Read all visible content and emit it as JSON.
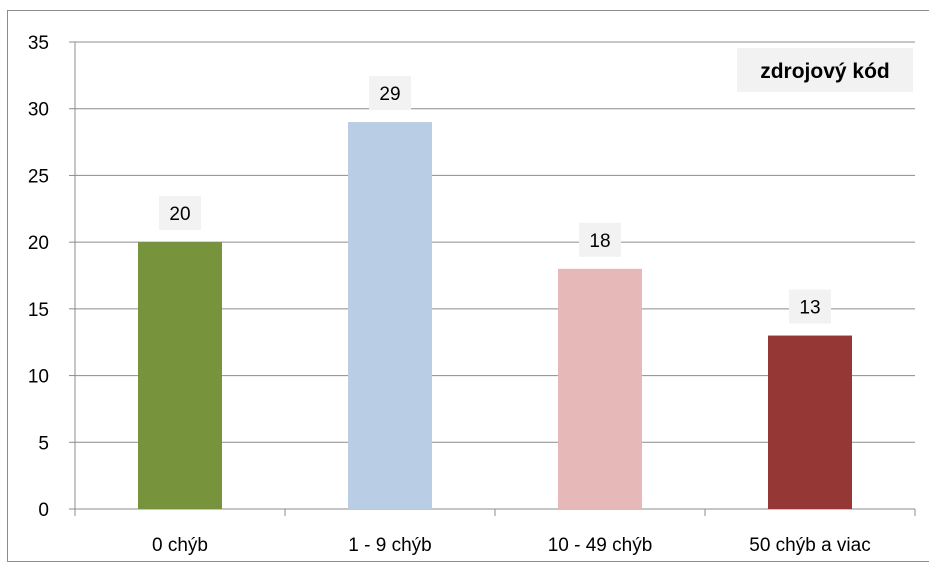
{
  "chart_data": {
    "type": "bar",
    "title": "zdrojový kód",
    "categories": [
      "0 chýb",
      "1 - 9 chýb",
      "10 - 49 chýb",
      "50 chýb a viac"
    ],
    "values": [
      20,
      29,
      18,
      13
    ],
    "data_labels": [
      "20",
      "29",
      "18",
      "13"
    ],
    "colors": [
      "#77933c",
      "#b9cde5",
      "#e6b9b8",
      "#953735"
    ],
    "ylim": [
      0,
      35
    ],
    "yticks": [
      "0",
      "5",
      "10",
      "15",
      "20",
      "25",
      "30",
      "35"
    ],
    "grid": true,
    "xlabel": "",
    "ylabel": "",
    "legend": "none"
  }
}
